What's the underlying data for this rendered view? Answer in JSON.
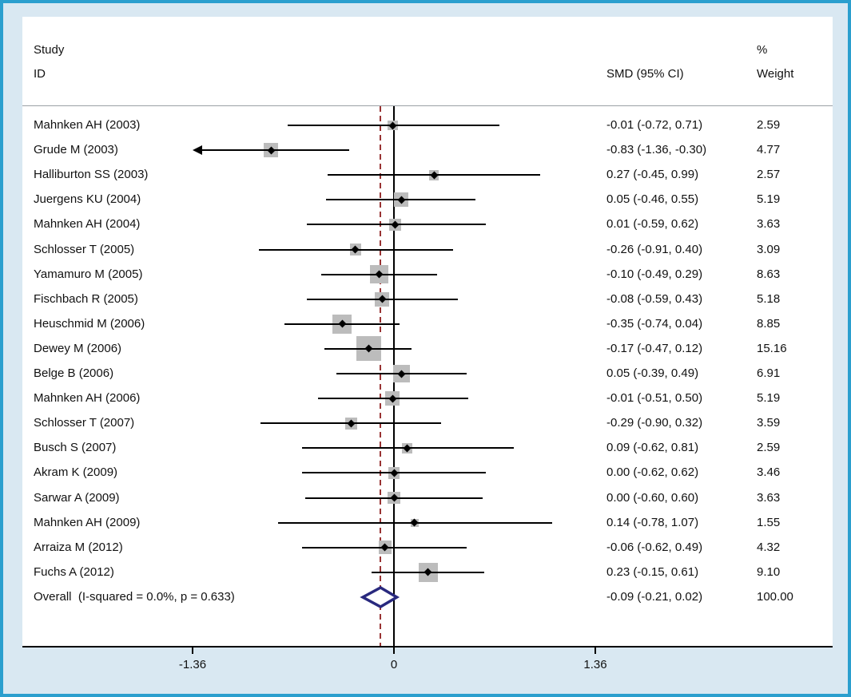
{
  "frame": {
    "border_color": "#2b9fce",
    "outer_background": "#d9e8f2",
    "panel_background": "#ffffff"
  },
  "header": {
    "study_line1": "Study",
    "study_line2": "ID",
    "smd_col": "SMD (95% CI)",
    "weight_line1": "%",
    "weight_line2": "Weight"
  },
  "chart_data": {
    "type": "scatter",
    "subtype": "forest-plot",
    "title": "",
    "xlabel": "",
    "ylabel": "",
    "x_range": [
      -1.36,
      1.36
    ],
    "grid": "off",
    "x_ticks": [
      {
        "value": -1.36,
        "label": "-1.36"
      },
      {
        "value": 0,
        "label": "0"
      },
      {
        "value": 1.36,
        "label": "1.36"
      }
    ],
    "null_line_x": 0,
    "overall_dashed_line_x": -0.09,
    "colors": {
      "ci_line": "#000000",
      "weight_square": "#bcbcbc",
      "point_marker": "#000000",
      "overall_diamond": "#29297e",
      "dashed_line": "#993333"
    },
    "studies": [
      {
        "label": "Mahnken AH (2003)",
        "smd": -0.01,
        "lo": -0.72,
        "hi": 0.71,
        "weight": 2.59,
        "smd_text": "-0.01 (-0.72, 0.71)",
        "weight_text": "2.59"
      },
      {
        "label": "Grude M (2003)",
        "smd": -0.83,
        "lo": -1.36,
        "hi": -0.3,
        "weight": 4.77,
        "smd_text": "-0.83 (-1.36, -0.30)",
        "weight_text": "4.77",
        "arrow_left": true
      },
      {
        "label": "Halliburton SS (2003)",
        "smd": 0.27,
        "lo": -0.45,
        "hi": 0.99,
        "weight": 2.57,
        "smd_text": "0.27 (-0.45, 0.99)",
        "weight_text": "2.57"
      },
      {
        "label": "Juergens KU (2004)",
        "smd": 0.05,
        "lo": -0.46,
        "hi": 0.55,
        "weight": 5.19,
        "smd_text": "0.05 (-0.46, 0.55)",
        "weight_text": "5.19"
      },
      {
        "label": "Mahnken AH (2004)",
        "smd": 0.01,
        "lo": -0.59,
        "hi": 0.62,
        "weight": 3.63,
        "smd_text": "0.01 (-0.59, 0.62)",
        "weight_text": "3.63"
      },
      {
        "label": "Schlosser T (2005)",
        "smd": -0.26,
        "lo": -0.91,
        "hi": 0.4,
        "weight": 3.09,
        "smd_text": "-0.26 (-0.91, 0.40)",
        "weight_text": "3.09"
      },
      {
        "label": "Yamamuro M (2005)",
        "smd": -0.1,
        "lo": -0.49,
        "hi": 0.29,
        "weight": 8.63,
        "smd_text": "-0.10 (-0.49, 0.29)",
        "weight_text": "8.63"
      },
      {
        "label": "Fischbach R (2005)",
        "smd": -0.08,
        "lo": -0.59,
        "hi": 0.43,
        "weight": 5.18,
        "smd_text": "-0.08 (-0.59, 0.43)",
        "weight_text": "5.18"
      },
      {
        "label": "Heuschmid M (2006)",
        "smd": -0.35,
        "lo": -0.74,
        "hi": 0.04,
        "weight": 8.85,
        "smd_text": "-0.35 (-0.74, 0.04)",
        "weight_text": "8.85"
      },
      {
        "label": "Dewey M (2006)",
        "smd": -0.17,
        "lo": -0.47,
        "hi": 0.12,
        "weight": 15.16,
        "smd_text": "-0.17 (-0.47, 0.12)",
        "weight_text": "15.16"
      },
      {
        "label": "Belge B (2006)",
        "smd": 0.05,
        "lo": -0.39,
        "hi": 0.49,
        "weight": 6.91,
        "smd_text": "0.05 (-0.39, 0.49)",
        "weight_text": "6.91"
      },
      {
        "label": "Mahnken AH (2006)",
        "smd": -0.01,
        "lo": -0.51,
        "hi": 0.5,
        "weight": 5.19,
        "smd_text": "-0.01 (-0.51, 0.50)",
        "weight_text": "5.19"
      },
      {
        "label": "Schlosser T (2007)",
        "smd": -0.29,
        "lo": -0.9,
        "hi": 0.32,
        "weight": 3.59,
        "smd_text": "-0.29 (-0.90, 0.32)",
        "weight_text": "3.59"
      },
      {
        "label": "Busch S (2007)",
        "smd": 0.09,
        "lo": -0.62,
        "hi": 0.81,
        "weight": 2.59,
        "smd_text": "0.09 (-0.62, 0.81)",
        "weight_text": "2.59"
      },
      {
        "label": "Akram K (2009)",
        "smd": 0.0,
        "lo": -0.62,
        "hi": 0.62,
        "weight": 3.46,
        "smd_text": "0.00 (-0.62, 0.62)",
        "weight_text": "3.46"
      },
      {
        "label": "Sarwar A (2009)",
        "smd": 0.0,
        "lo": -0.6,
        "hi": 0.6,
        "weight": 3.63,
        "smd_text": "0.00 (-0.60, 0.60)",
        "weight_text": "3.63"
      },
      {
        "label": "Mahnken AH (2009)",
        "smd": 0.14,
        "lo": -0.78,
        "hi": 1.07,
        "weight": 1.55,
        "smd_text": "0.14 (-0.78, 1.07)",
        "weight_text": "1.55"
      },
      {
        "label": "Arraiza M (2012)",
        "smd": -0.06,
        "lo": -0.62,
        "hi": 0.49,
        "weight": 4.32,
        "smd_text": "-0.06 (-0.62, 0.49)",
        "weight_text": "4.32"
      },
      {
        "label": "Fuchs A (2012)",
        "smd": 0.23,
        "lo": -0.15,
        "hi": 0.61,
        "weight": 9.1,
        "smd_text": "0.23 (-0.15, 0.61)",
        "weight_text": "9.10"
      }
    ],
    "overall": {
      "label": "Overall  (I-squared = 0.0%, p = 0.633)",
      "smd": -0.09,
      "lo": -0.21,
      "hi": 0.02,
      "smd_text": "-0.09 (-0.21, 0.02)",
      "weight_text": "100.00"
    }
  }
}
